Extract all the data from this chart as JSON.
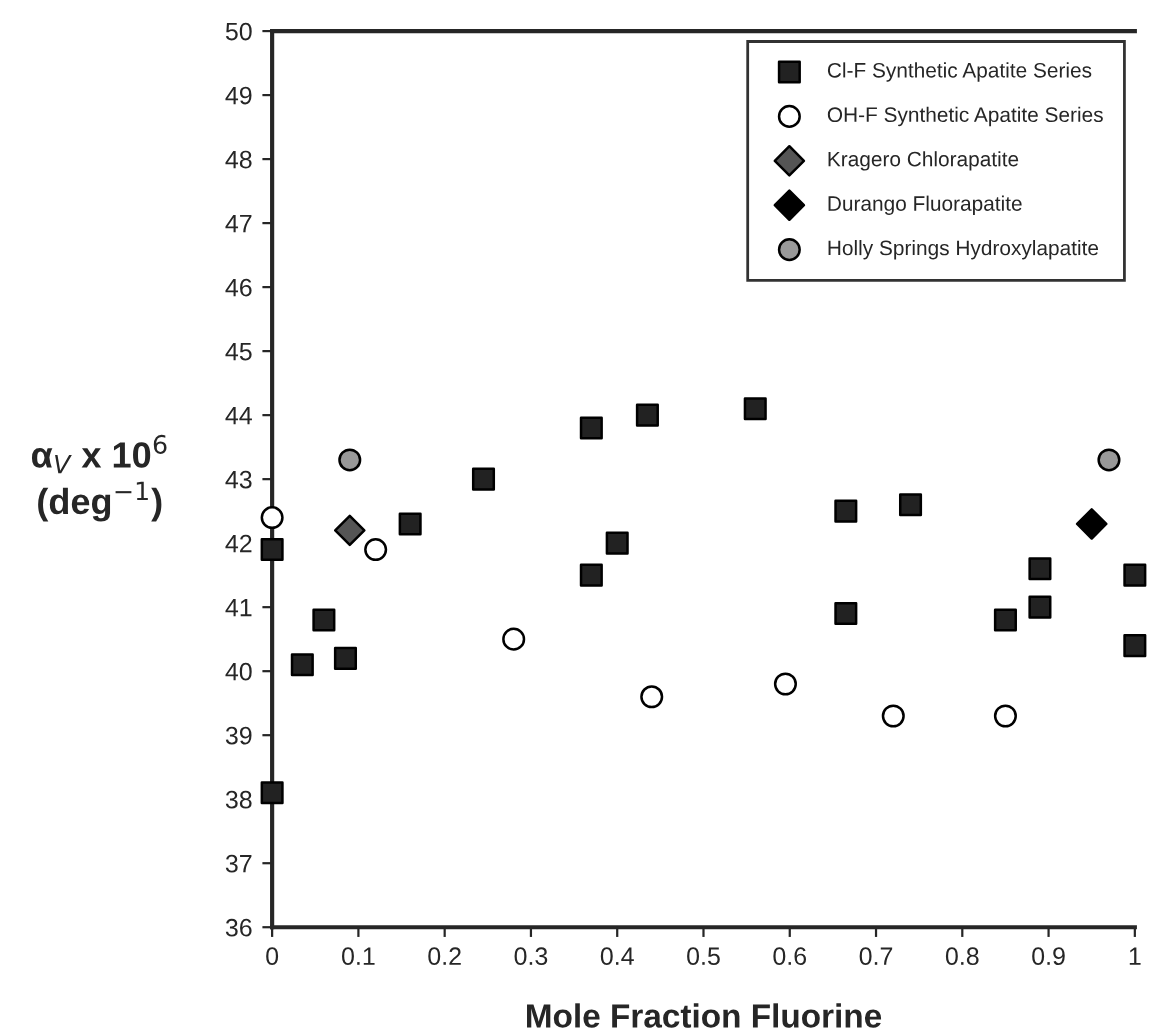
{
  "chart_data": {
    "type": "scatter",
    "xlabel": "Mole Fraction Fluorine",
    "ylabel": "α$_{V}$ x 10$^{6}$\n(deg$^{−1}$)",
    "xlim": [
      0,
      1
    ],
    "ylim": [
      36,
      50
    ],
    "xticks": [
      0,
      0.1,
      0.2,
      0.3,
      0.4,
      0.5,
      0.6,
      0.7,
      0.8,
      0.9,
      1
    ],
    "yticks": [
      36,
      37,
      38,
      39,
      40,
      41,
      42,
      43,
      44,
      45,
      46,
      47,
      48,
      49,
      50
    ],
    "grid": false,
    "legend": "top right",
    "series": [
      {
        "name": "Cl-F Synthetic Apatite Series",
        "color": "#222222",
        "marker": "square",
        "x": [
          0,
          0,
          0.035,
          0.06,
          0.085,
          0.16,
          0.245,
          0.37,
          0.37,
          0.4,
          0.435,
          0.56,
          0.665,
          0.665,
          0.74,
          0.85,
          0.89,
          0.89,
          1.0,
          1.0
        ],
        "values": [
          38.1,
          41.9,
          40.1,
          40.8,
          40.2,
          42.3,
          43.0,
          41.5,
          43.8,
          42.0,
          44.0,
          44.1,
          42.5,
          40.9,
          42.6,
          40.8,
          41.6,
          41.0,
          41.5,
          40.4
        ]
      },
      {
        "name": "OH-F Synthetic Apatite Series",
        "color": "#ffffff",
        "marker": "circle",
        "x": [
          0,
          0.12,
          0.28,
          0.44,
          0.595,
          0.72,
          0.85
        ],
        "values": [
          42.4,
          41.9,
          40.5,
          39.6,
          39.8,
          39.3,
          39.3
        ]
      },
      {
        "name": "Kragero Chlorapatite",
        "color": "#555555",
        "marker": "diamond",
        "x": [
          0.09
        ],
        "values": [
          42.2
        ]
      },
      {
        "name": "Durango Fluorapatite",
        "color": "#000000",
        "marker": "diamond",
        "x": [
          0.95
        ],
        "values": [
          42.3
        ]
      },
      {
        "name": "Holly Springs Hydroxylapatite",
        "color": "#999999",
        "marker": "circle",
        "x": [
          0.09,
          0.97
        ],
        "values": [
          43.3,
          43.3
        ]
      }
    ]
  }
}
